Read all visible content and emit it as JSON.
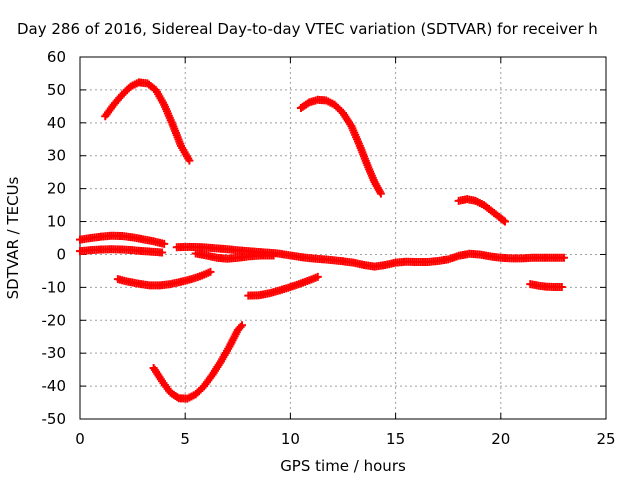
{
  "chart_data": {
    "type": "scatter",
    "title": "Day 286 of 2016, Sidereal Day-to-day VTEC variation (SDTVAR) for receiver h",
    "xlabel": "GPS time / hours",
    "ylabel": "SDTVAR / TECUs",
    "xlim": [
      0,
      25
    ],
    "ylim": [
      -50,
      60
    ],
    "xticks": [
      0,
      5,
      10,
      15,
      20,
      25
    ],
    "yticks": [
      -50,
      -40,
      -30,
      -20,
      -10,
      0,
      10,
      20,
      30,
      40,
      50,
      60
    ],
    "grid": true,
    "legend": "none",
    "marker": "plus",
    "color": "#ff0000",
    "series": [
      {
        "values": [
          [
            1.2,
            42
          ],
          [
            1.6,
            45.5
          ],
          [
            2.0,
            48.5
          ],
          [
            2.4,
            51
          ],
          [
            2.8,
            52.3
          ],
          [
            3.2,
            52
          ],
          [
            3.6,
            50
          ],
          [
            4.0,
            45.5
          ],
          [
            4.4,
            39.5
          ],
          [
            4.8,
            33
          ],
          [
            5.2,
            28.5
          ]
        ]
      },
      {
        "values": [
          [
            10.5,
            44.5
          ],
          [
            10.9,
            46.2
          ],
          [
            11.3,
            47
          ],
          [
            11.7,
            46.8
          ],
          [
            12.1,
            45.5
          ],
          [
            12.5,
            43
          ],
          [
            12.9,
            39
          ],
          [
            13.3,
            33
          ],
          [
            13.7,
            26.5
          ],
          [
            14.0,
            22
          ],
          [
            14.3,
            18.5
          ]
        ]
      },
      {
        "values": [
          [
            18.0,
            16.3
          ],
          [
            18.4,
            16.8
          ],
          [
            18.8,
            16.3
          ],
          [
            19.2,
            15
          ],
          [
            19.6,
            13
          ],
          [
            20.0,
            11
          ],
          [
            20.2,
            10
          ]
        ]
      },
      {
        "values": [
          [
            0.0,
            4.5
          ],
          [
            0.5,
            5
          ],
          [
            1.0,
            5.4
          ],
          [
            1.5,
            5.7
          ],
          [
            2.0,
            5.6
          ],
          [
            2.5,
            5.2
          ],
          [
            3.0,
            4.6
          ],
          [
            3.5,
            4
          ],
          [
            4.0,
            3.2
          ]
        ]
      },
      {
        "values": [
          [
            0.0,
            1
          ],
          [
            0.5,
            1.3
          ],
          [
            1.0,
            1.5
          ],
          [
            1.5,
            1.6
          ],
          [
            2.0,
            1.5
          ],
          [
            2.5,
            1.3
          ],
          [
            3.0,
            1
          ],
          [
            3.5,
            0.8
          ],
          [
            3.9,
            0.6
          ]
        ]
      },
      {
        "values": [
          [
            4.6,
            2.2
          ],
          [
            5.2,
            2.3
          ],
          [
            5.8,
            2.2
          ],
          [
            6.4,
            1.9
          ],
          [
            7.0,
            1.6
          ],
          [
            7.6,
            1.2
          ],
          [
            8.2,
            0.9
          ],
          [
            8.8,
            0.6
          ],
          [
            9.4,
            0.3
          ],
          [
            10.0,
            -0.3
          ],
          [
            10.6,
            -0.9
          ],
          [
            11.2,
            -1.3
          ],
          [
            11.8,
            -1.6
          ],
          [
            12.4,
            -2
          ],
          [
            13.0,
            -2.5
          ],
          [
            13.5,
            -3.2
          ],
          [
            14.0,
            -3.7
          ],
          [
            14.5,
            -3.2
          ],
          [
            15.0,
            -2.5
          ],
          [
            15.5,
            -2.2
          ],
          [
            16.0,
            -2.3
          ],
          [
            16.5,
            -2.3
          ],
          [
            17.0,
            -2
          ],
          [
            17.5,
            -1.5
          ],
          [
            18.0,
            -0.4
          ],
          [
            18.5,
            0.2
          ],
          [
            19.0,
            0
          ],
          [
            19.5,
            -0.6
          ],
          [
            20.0,
            -1
          ],
          [
            20.5,
            -1.2
          ],
          [
            21.0,
            -1.2
          ],
          [
            21.5,
            -1
          ],
          [
            22.0,
            -1
          ],
          [
            22.5,
            -1
          ],
          [
            23.0,
            -1
          ]
        ]
      },
      {
        "values": [
          [
            5.5,
            0.3
          ],
          [
            6.0,
            -0.3
          ],
          [
            6.5,
            -1
          ],
          [
            7.0,
            -1.3
          ],
          [
            7.5,
            -1
          ],
          [
            8.0,
            -0.6
          ],
          [
            8.6,
            -0.3
          ],
          [
            9.2,
            -0.3
          ]
        ]
      },
      {
        "values": [
          [
            1.8,
            -7.5
          ],
          [
            2.3,
            -8.3
          ],
          [
            2.8,
            -8.9
          ],
          [
            3.3,
            -9.4
          ],
          [
            3.8,
            -9.4
          ],
          [
            4.3,
            -9
          ],
          [
            4.8,
            -8.3
          ],
          [
            5.3,
            -7.5
          ],
          [
            5.8,
            -6.4
          ],
          [
            6.2,
            -5.3
          ]
        ]
      },
      {
        "values": [
          [
            8.0,
            -12.5
          ],
          [
            8.5,
            -12.4
          ],
          [
            9.0,
            -11.8
          ],
          [
            9.5,
            -10.9
          ],
          [
            10.0,
            -9.9
          ],
          [
            10.5,
            -8.8
          ],
          [
            11.0,
            -7.6
          ],
          [
            11.3,
            -6.8
          ]
        ]
      },
      {
        "values": [
          [
            21.4,
            -9
          ],
          [
            21.8,
            -9.5
          ],
          [
            22.2,
            -9.8
          ],
          [
            22.6,
            -9.9
          ],
          [
            22.9,
            -9.9
          ]
        ]
      },
      {
        "values": [
          [
            3.5,
            -34.5
          ],
          [
            3.9,
            -38.5
          ],
          [
            4.3,
            -42
          ],
          [
            4.7,
            -43.7
          ],
          [
            5.1,
            -43.8
          ],
          [
            5.5,
            -42.5
          ],
          [
            5.9,
            -40
          ],
          [
            6.3,
            -36.5
          ],
          [
            6.7,
            -32.5
          ],
          [
            7.1,
            -28
          ],
          [
            7.5,
            -23
          ],
          [
            7.7,
            -21.5
          ]
        ]
      }
    ]
  }
}
